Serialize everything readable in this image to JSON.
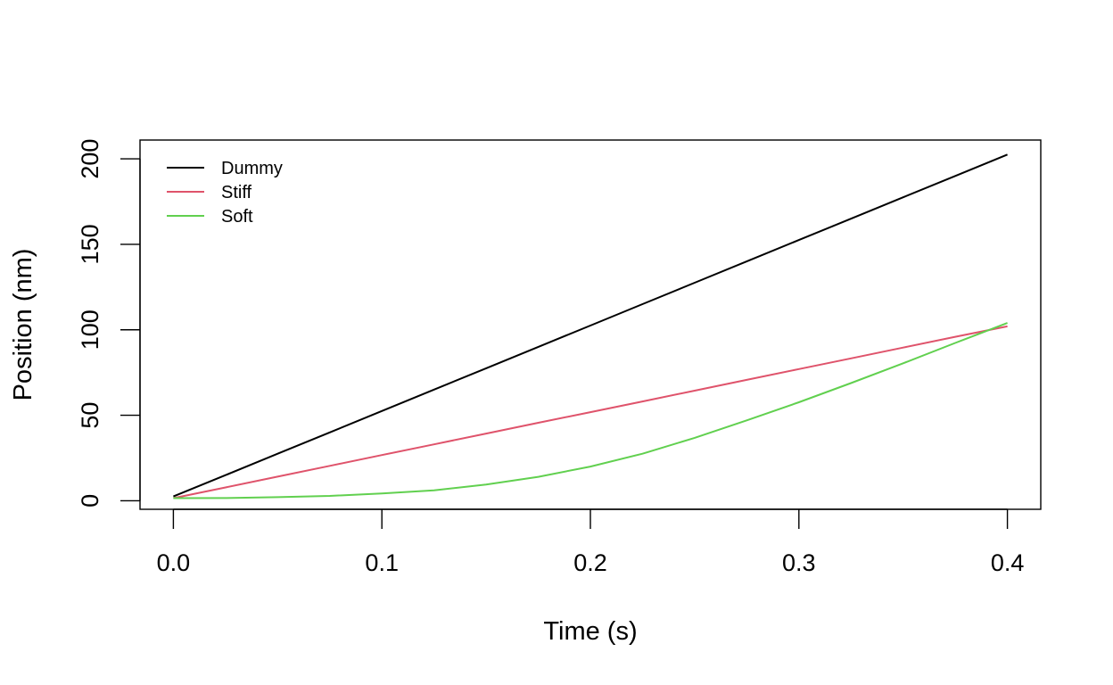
{
  "chart_data": {
    "type": "line",
    "title": "",
    "xlabel": "Time (s)",
    "ylabel": "Position (nm)",
    "xlim": [
      -0.016,
      0.416
    ],
    "ylim": [
      -5,
      211
    ],
    "x_ticks": [
      0.0,
      0.1,
      0.2,
      0.3,
      0.4
    ],
    "x_tick_labels": [
      "0.0",
      "0.1",
      "0.2",
      "0.3",
      "0.4"
    ],
    "y_ticks": [
      0,
      50,
      100,
      150,
      200
    ],
    "y_tick_labels": [
      "0",
      "50",
      "100",
      "150",
      "200"
    ],
    "grid": false,
    "legend_position": "top-left",
    "x": [
      0.0,
      0.025,
      0.05,
      0.075,
      0.1,
      0.125,
      0.15,
      0.175,
      0.2,
      0.225,
      0.25,
      0.275,
      0.3,
      0.325,
      0.35,
      0.375,
      0.4
    ],
    "series": [
      {
        "name": "Dummy",
        "color": "#000000",
        "values": [
          2.5,
          15,
          27.5,
          40,
          52.5,
          65,
          77.5,
          90,
          102.5,
          115,
          127.5,
          140,
          152.5,
          165,
          177.5,
          190,
          202.5
        ]
      },
      {
        "name": "Stiff",
        "color": "#DF536B",
        "values": [
          1.5,
          7.8,
          14.1,
          20.4,
          26.7,
          33,
          39.3,
          45.6,
          51.8,
          58.1,
          64.4,
          70.7,
          77,
          83.3,
          89.6,
          95.9,
          102
        ]
      },
      {
        "name": "Soft",
        "color": "#61D04F",
        "values": [
          1.5,
          1.6,
          2.1,
          2.8,
          4.3,
          6.1,
          9.5,
          14,
          20,
          27.5,
          36.8,
          47,
          57.6,
          68.8,
          80.4,
          92.3,
          104
        ]
      }
    ]
  }
}
